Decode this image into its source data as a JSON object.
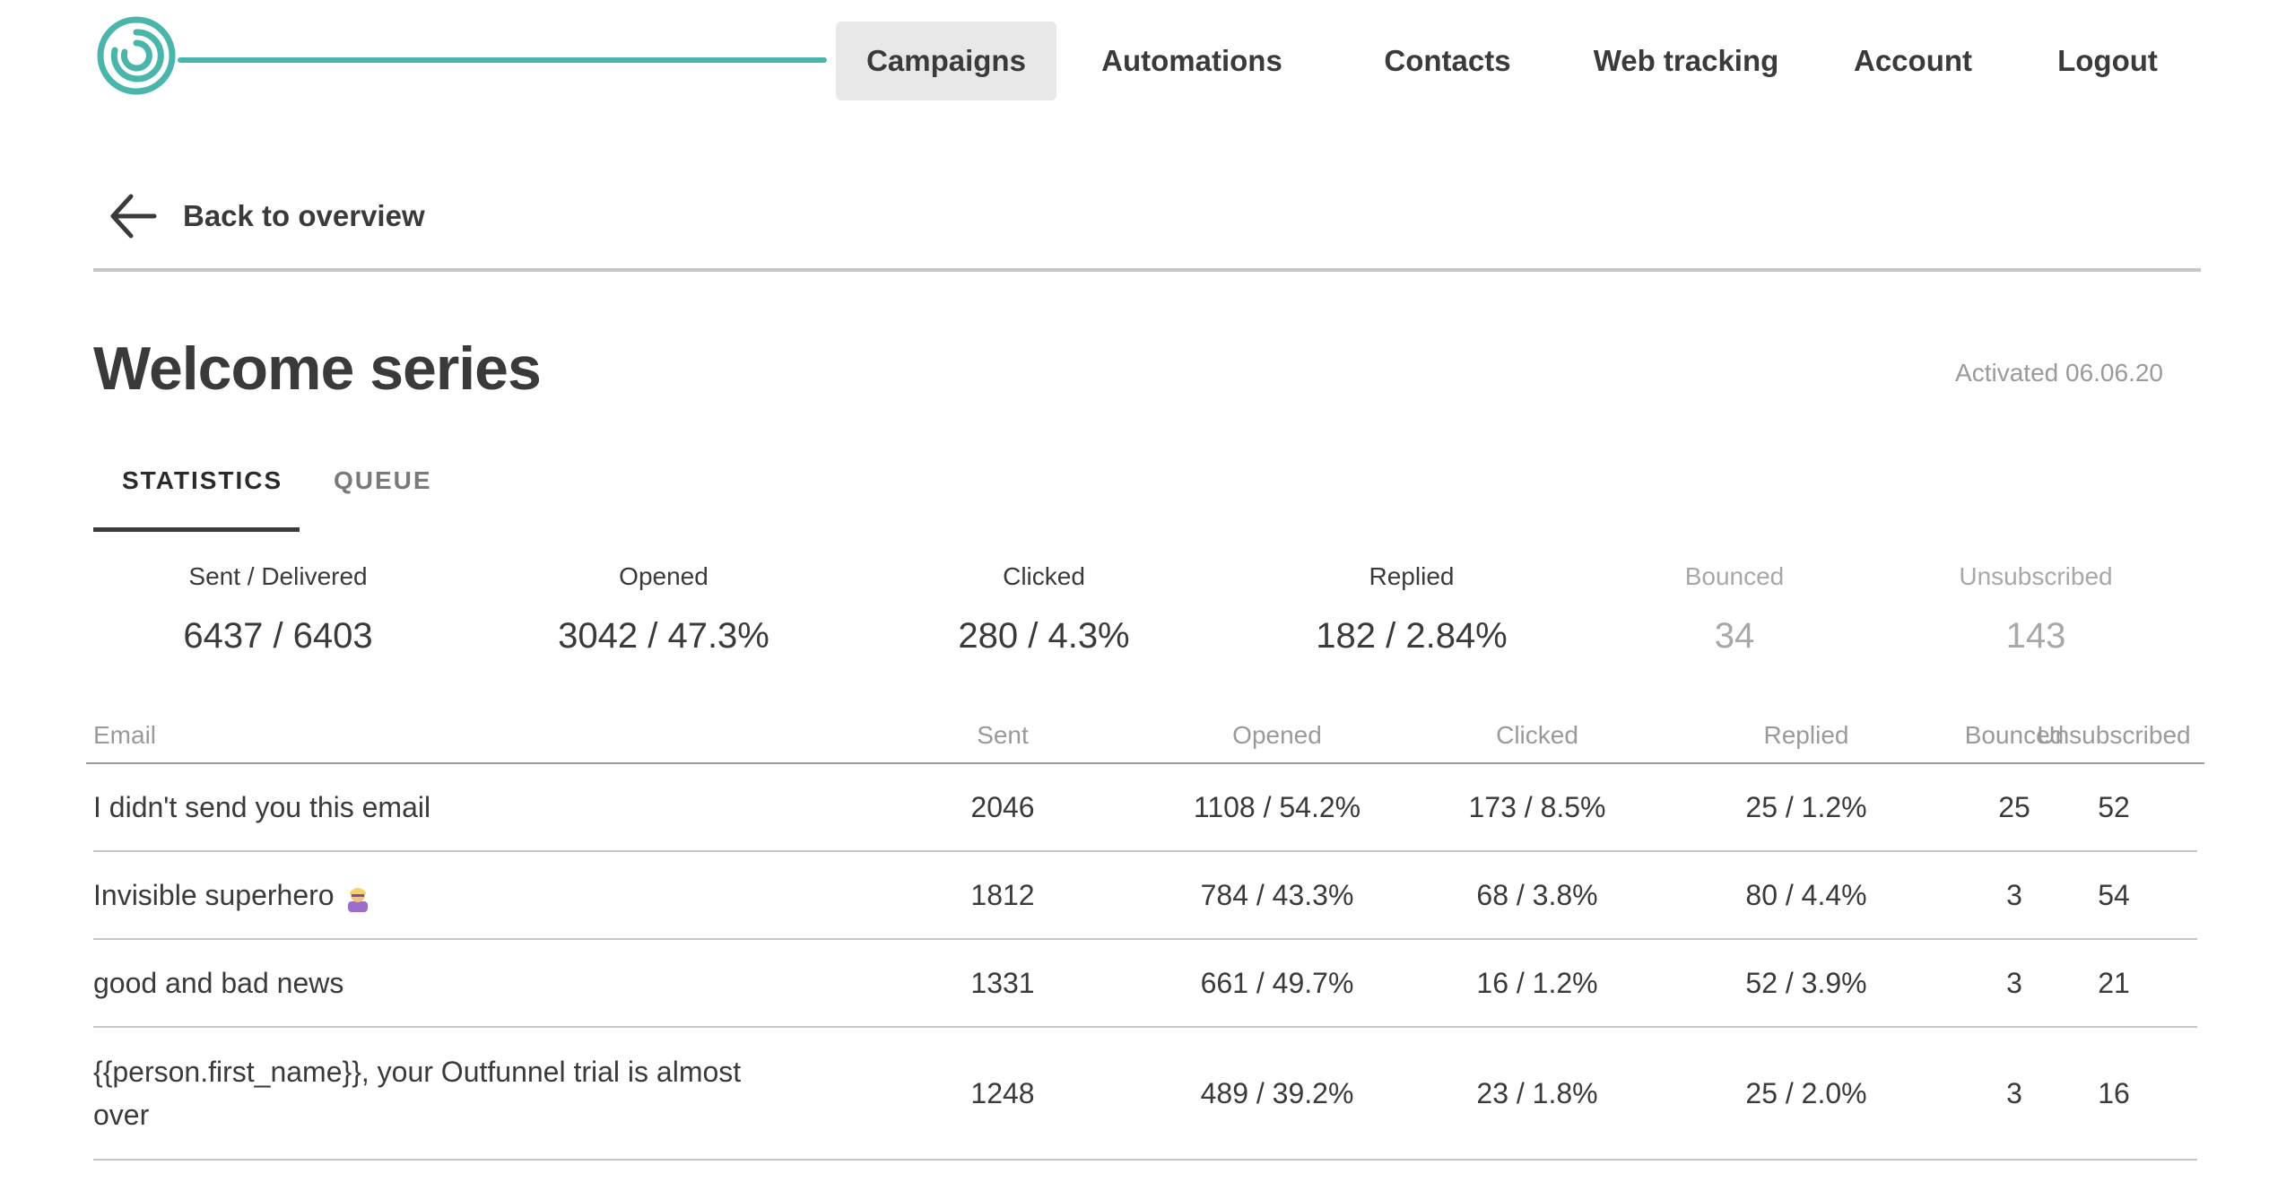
{
  "nav": {
    "items": [
      {
        "label": "Campaigns",
        "active": true
      },
      {
        "label": "Automations",
        "active": false
      },
      {
        "label": "Contacts",
        "active": false
      },
      {
        "label": "Web tracking",
        "active": false
      },
      {
        "label": "Account",
        "active": false
      },
      {
        "label": "Logout",
        "active": false
      }
    ]
  },
  "back": {
    "label": "Back to overview",
    "icon": "arrow-left-icon"
  },
  "page": {
    "title": "Welcome series",
    "activated": "Activated 06.06.20"
  },
  "tabs": [
    {
      "label": "STATISTICS",
      "active": true
    },
    {
      "label": "QUEUE",
      "active": false
    }
  ],
  "stats": [
    {
      "label": "Sent / Delivered",
      "value": "6437 / 6403"
    },
    {
      "label": "Opened",
      "value": "3042 / 47.3%"
    },
    {
      "label": "Clicked",
      "value": "280 / 4.3%"
    },
    {
      "label": "Replied",
      "value": "182 / 2.84%"
    },
    {
      "label": "Bounced",
      "value": "34"
    },
    {
      "label": "Unsubscribed",
      "value": "143"
    }
  ],
  "table": {
    "headers": {
      "email": "Email",
      "sent": "Sent",
      "opened": "Opened",
      "clicked": "Clicked",
      "replied": "Replied",
      "bounced": "Bounced",
      "unsubscribed": "Unsubscribed"
    },
    "rows": [
      {
        "email": "I didn't send you this email",
        "sent": "2046",
        "opened": "1108 / 54.2%",
        "clicked": "173 / 8.5%",
        "replied": "25 / 1.2%",
        "bounced": "25",
        "unsubscribed": "52"
      },
      {
        "email": "Invisible superhero",
        "email_icon": "superhero-emoji-icon",
        "sent": "1812",
        "opened": "784 / 43.3%",
        "clicked": "68 / 3.8%",
        "replied": "80 / 4.4%",
        "bounced": "3",
        "unsubscribed": "54"
      },
      {
        "email": "good and bad news",
        "sent": "1331",
        "opened": "661 / 49.7%",
        "clicked": "16 / 1.2%",
        "replied": "52 / 3.9%",
        "bounced": "3",
        "unsubscribed": "21"
      },
      {
        "email": "{{person.first_name}}, your Outfunnel trial is almost over",
        "sent": "1248",
        "opened": "489 / 39.2%",
        "clicked": "23 / 1.8%",
        "replied": "25 / 2.0%",
        "bounced": "3",
        "unsubscribed": "16"
      }
    ]
  },
  "colors": {
    "brand": "#4ab5aa",
    "text": "#3a3a3a",
    "muted": "#9a9a9a",
    "nav_active_bg": "#e8e8e8"
  }
}
